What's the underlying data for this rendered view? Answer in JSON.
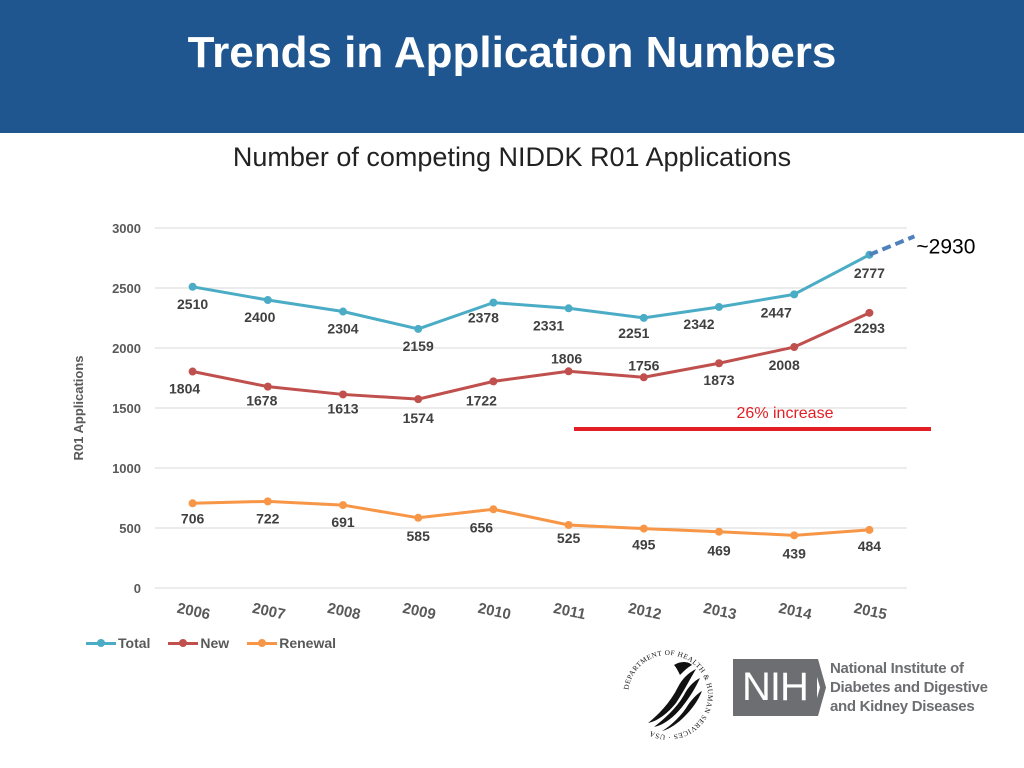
{
  "header": {
    "title": "Trends in Application Numbers"
  },
  "chart_data": {
    "type": "line",
    "title": "Number of competing NIDDK R01 Applications",
    "xlabel": "",
    "ylabel": "R01 Applications",
    "ylim": [
      0,
      3000
    ],
    "yticks": [
      0,
      500,
      1000,
      1500,
      2000,
      2500,
      3000
    ],
    "categories": [
      "2006",
      "2007",
      "2008",
      "2009",
      "2010",
      "2011",
      "2012",
      "2013",
      "2014",
      "2015"
    ],
    "series": [
      {
        "name": "Total",
        "color": "#4bacc6",
        "values": [
          2510,
          2400,
          2304,
          2159,
          2378,
          2331,
          2251,
          2342,
          2447,
          2777
        ]
      },
      {
        "name": "New",
        "color": "#c0504d",
        "values": [
          1804,
          1678,
          1613,
          1574,
          1722,
          1806,
          1756,
          1873,
          2008,
          2293
        ]
      },
      {
        "name": "Renewal",
        "color": "#f79646",
        "values": [
          706,
          722,
          691,
          585,
          656,
          525,
          495,
          469,
          439,
          484
        ]
      }
    ],
    "projection": {
      "series": "Total",
      "value": 2930,
      "label": "~2930",
      "color": "#4f81bd"
    },
    "annotation": {
      "text": "26% increase",
      "color": "#e31e24"
    },
    "grid": true,
    "legend": "bottom-left"
  },
  "logos": {
    "hhs": {
      "text": "DEPARTMENT OF HEALTH & HUMAN SERVICES · USA"
    },
    "nih": {
      "acronym": "NIH",
      "name_lines": [
        "National Institute of",
        "Diabetes and Digestive",
        "and Kidney Diseases"
      ]
    }
  }
}
